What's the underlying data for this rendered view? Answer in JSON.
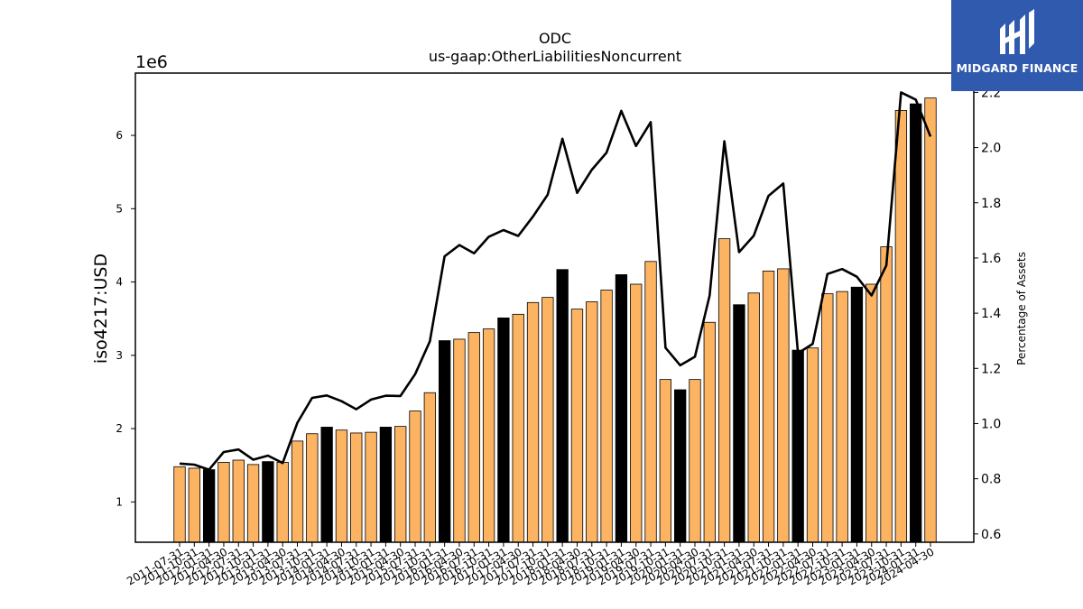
{
  "chart_data": {
    "type": "bar",
    "title": "ODC",
    "subtitle": "us-gaap:OtherLiabilitiesNoncurrent",
    "ylabel": "iso4217:USD",
    "y2label": "Percentage of Assets",
    "yoffset_label": "1e6",
    "ylim": [
      0.45,
      6.85
    ],
    "y2lim": [
      0.57,
      2.27
    ],
    "yticks": [
      1,
      2,
      3,
      4,
      5,
      6
    ],
    "y2ticks": [
      "0.6",
      "0.8",
      "1.0",
      "1.2",
      "1.4",
      "1.6",
      "1.8",
      "2.0",
      "2.2"
    ],
    "bar_colors": {
      "quarter": "#fdb462",
      "fiscal_year_end": "#000000",
      "line": "#000000"
    },
    "categories": [
      "2011-07-31",
      "2011-10-31",
      "2012-01-31",
      "2012-04-30",
      "2012-07-31",
      "2012-10-31",
      "2013-01-31",
      "2013-04-30",
      "2013-07-31",
      "2013-10-31",
      "2014-01-31",
      "2014-04-30",
      "2014-07-31",
      "2014-10-31",
      "2015-01-31",
      "2015-04-30",
      "2015-07-31",
      "2015-10-31",
      "2016-01-31",
      "2016-04-30",
      "2016-07-31",
      "2016-10-31",
      "2017-01-31",
      "2017-04-30",
      "2017-07-31",
      "2017-10-31",
      "2018-01-31",
      "2018-04-30",
      "2018-07-31",
      "2018-10-31",
      "2019-01-31",
      "2019-04-30",
      "2019-07-31",
      "2019-10-31",
      "2020-01-31",
      "2020-04-30",
      "2020-07-31",
      "2020-10-31",
      "2021-01-31",
      "2021-04-30",
      "2021-07-31",
      "2021-10-31",
      "2022-01-31",
      "2022-04-30",
      "2022-07-31",
      "2022-10-31",
      "2023-01-31",
      "2023-04-30",
      "2023-07-31",
      "2023-10-31",
      "2024-01-31",
      "2024-04-30"
    ],
    "highlighted": [
      false,
      false,
      true,
      false,
      false,
      false,
      true,
      false,
      false,
      false,
      true,
      false,
      false,
      false,
      true,
      false,
      false,
      false,
      true,
      false,
      false,
      false,
      true,
      false,
      false,
      false,
      true,
      false,
      false,
      false,
      true,
      false,
      false,
      false,
      true,
      false,
      false,
      false,
      true,
      false,
      false,
      false,
      true,
      false,
      false,
      false,
      true,
      false,
      false,
      false,
      true,
      false
    ],
    "series": [
      {
        "name": "iso4217:USD",
        "axis": "left",
        "values": [
          1.48,
          1.46,
          1.44,
          1.54,
          1.57,
          1.51,
          1.55,
          1.54,
          1.83,
          1.93,
          2.02,
          1.98,
          1.94,
          1.95,
          2.02,
          2.03,
          2.24,
          2.49,
          3.2,
          3.22,
          3.31,
          3.36,
          3.51,
          3.56,
          3.72,
          3.79,
          4.17,
          3.63,
          3.73,
          3.89,
          4.1,
          3.97,
          4.28,
          2.67,
          2.53,
          2.67,
          3.45,
          4.59,
          3.69,
          3.85,
          4.15,
          4.18,
          3.07,
          3.1,
          3.84,
          3.87,
          3.93,
          3.97,
          4.48,
          6.34,
          6.43,
          6.51
        ]
      },
      {
        "name": "Percentage of Assets",
        "axis": "right",
        "type": "line",
        "values": [
          0.855,
          0.851,
          0.833,
          0.897,
          0.906,
          0.869,
          0.884,
          0.857,
          1.003,
          1.093,
          1.102,
          1.081,
          1.052,
          1.087,
          1.101,
          1.1,
          1.179,
          1.298,
          1.606,
          1.647,
          1.617,
          1.677,
          1.701,
          1.68,
          1.75,
          1.829,
          2.032,
          1.836,
          1.92,
          1.982,
          2.133,
          2.006,
          2.092,
          1.275,
          1.211,
          1.242,
          1.464,
          2.023,
          1.621,
          1.681,
          1.825,
          1.87,
          1.255,
          1.289,
          1.542,
          1.56,
          1.532,
          1.464,
          1.573,
          2.2,
          2.174,
          2.04
        ]
      }
    ]
  },
  "branding": {
    "logo_text": "MIDGARD FINANCE",
    "logo_color": "#2f5aae"
  }
}
